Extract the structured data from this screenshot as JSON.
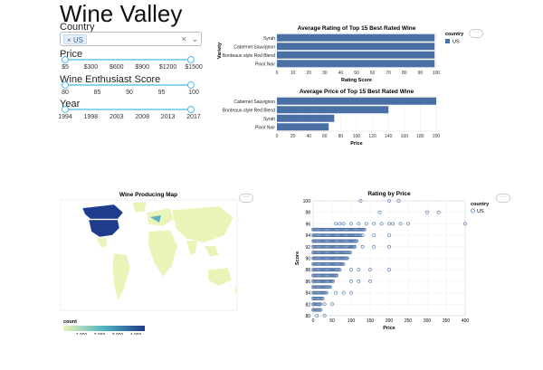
{
  "app": {
    "title": "Wine Valley"
  },
  "filters": {
    "country_label": "Country",
    "country_tag": "US",
    "country_tag_remove": "×",
    "clear_icon": "×",
    "dropdown_icon": "⌄",
    "price": {
      "label": "Price",
      "ticks": [
        "$5",
        "$300",
        "$600",
        "$900",
        "$1200",
        "$1500"
      ]
    },
    "score": {
      "label": "Wine Enthusiast Score",
      "ticks": [
        "80",
        "85",
        "90",
        "95",
        "100"
      ]
    },
    "year": {
      "label": "Year",
      "ticks": [
        "1994",
        "1998",
        "2003",
        "2008",
        "2013",
        "2017"
      ]
    }
  },
  "menu_label": "···",
  "colors": {
    "bar": "#4a6fa5",
    "track": "#8bd3ef",
    "map_high": "#1f3b8c",
    "map_low": "#e9f4b8"
  },
  "chart_data": [
    {
      "type": "bar",
      "title": "Average Rating of Top 15 Best Rated Wine",
      "ylabel": "Variety",
      "xlabel": "Rating Score",
      "categories": [
        "Syrah",
        "Cabernet Sauvignon",
        "Bordeaux-style Red Blend",
        "Pinot Noir"
      ],
      "values": [
        99,
        99,
        99,
        99
      ],
      "xlim": [
        0,
        100
      ],
      "xticks": [
        "0",
        "10",
        "20",
        "30",
        "40",
        "50",
        "60",
        "70",
        "80",
        "90",
        "100"
      ],
      "legend": {
        "title": "country",
        "entries": [
          "US"
        ],
        "placement": "right"
      }
    },
    {
      "type": "bar",
      "title": "Average Price of Top 15 Best Rated Wine",
      "xlabel": "Price",
      "categories": [
        "Cabernet Sauvignon",
        "Bordeaux-style Red Blend",
        "Syrah",
        "Pinot Noir"
      ],
      "values": [
        200,
        140,
        72,
        65
      ],
      "xlim": [
        0,
        200
      ],
      "xticks": [
        "0",
        "20",
        "40",
        "60",
        "80",
        "100",
        "120",
        "140",
        "160",
        "180",
        "200"
      ]
    },
    {
      "type": "heatmap",
      "title": "Wine Producing Map",
      "legend": {
        "title": "count",
        "ticks": [
          "1,000",
          "2,000",
          "3,000",
          "4,000"
        ],
        "range": [
          0,
          4500
        ]
      }
    },
    {
      "type": "scatter",
      "title": "Rating by Price",
      "xlabel": "Price",
      "ylabel": "Score",
      "xlim": [
        0,
        400
      ],
      "ylim": [
        80,
        100
      ],
      "xticks": [
        "0",
        "50",
        "100",
        "150",
        "200",
        "250",
        "300",
        "350",
        "400"
      ],
      "yticks": [
        "80",
        "82",
        "84",
        "86",
        "88",
        "90",
        "92",
        "94",
        "96",
        "98",
        "100"
      ],
      "legend": {
        "title": "country",
        "entries": [
          "US"
        ],
        "placement": "right"
      },
      "points": [
        [
          200,
          100
        ],
        [
          225,
          100
        ],
        [
          125,
          100
        ],
        [
          300,
          98
        ],
        [
          330,
          98
        ],
        [
          175,
          98
        ],
        [
          400,
          96
        ],
        [
          250,
          96
        ],
        [
          230,
          96
        ],
        [
          210,
          96
        ],
        [
          200,
          96
        ],
        [
          180,
          96
        ],
        [
          160,
          96
        ],
        [
          140,
          96
        ],
        [
          120,
          96
        ],
        [
          100,
          96
        ],
        [
          80,
          96
        ],
        [
          70,
          96
        ],
        [
          60,
          96
        ],
        [
          200,
          94
        ],
        [
          160,
          94
        ],
        [
          130,
          94
        ],
        [
          110,
          94
        ],
        [
          90,
          94
        ],
        [
          75,
          94
        ],
        [
          200,
          92
        ],
        [
          160,
          92
        ],
        [
          130,
          92
        ],
        [
          110,
          92
        ],
        [
          95,
          92
        ],
        [
          200,
          88
        ],
        [
          150,
          88
        ],
        [
          120,
          88
        ],
        [
          100,
          88
        ],
        [
          150,
          86
        ],
        [
          120,
          86
        ],
        [
          100,
          86
        ],
        [
          100,
          84
        ],
        [
          80,
          84
        ],
        [
          60,
          84
        ],
        [
          30,
          82
        ],
        [
          50,
          82
        ],
        [
          10,
          80
        ],
        [
          30,
          80
        ]
      ]
    }
  ]
}
